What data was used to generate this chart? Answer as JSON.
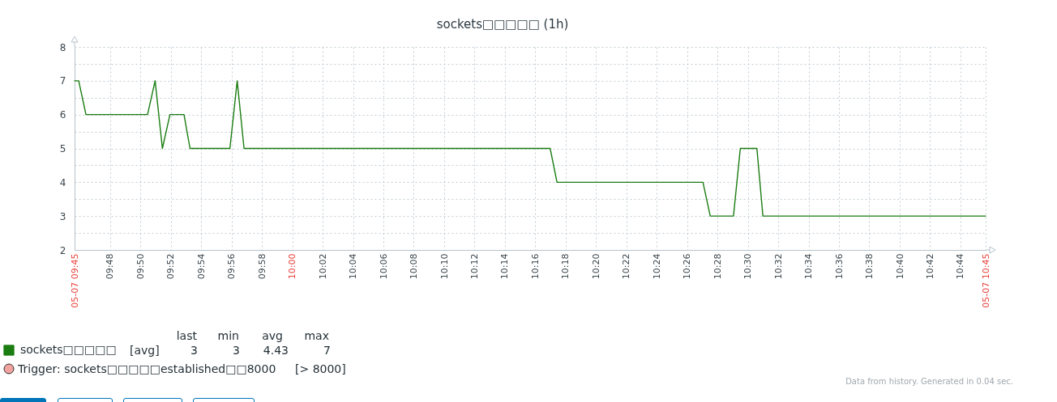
{
  "chart_data": {
    "type": "line",
    "title": "sockets□□□□□ (1h)",
    "x": [
      9.761,
      9.7655,
      9.7735,
      9.8411,
      9.8494,
      9.8574,
      9.8657,
      9.8811,
      9.8877,
      9.9315,
      9.9395,
      9.947,
      10.283,
      10.2905,
      10.4507,
      10.4587,
      10.4842,
      10.4917,
      10.5099,
      10.5165,
      10.761
    ],
    "series": [
      {
        "name": "sockets□□□□□",
        "color": "#1a7c11",
        "values": [
          7,
          7,
          6,
          6,
          7,
          5,
          6,
          6,
          5,
          5,
          7,
          5,
          5,
          4,
          4,
          3,
          3,
          5,
          5,
          3,
          3
        ]
      }
    ],
    "xlim": [
      9.761,
      10.761
    ],
    "xticks": [
      {
        "value": 9.761,
        "label": "05-07 09:45"
      },
      {
        "value": 9.8,
        "label": "09:48"
      },
      {
        "value": 9.8333,
        "label": "09:50"
      },
      {
        "value": 9.8667,
        "label": "09:52"
      },
      {
        "value": 9.9,
        "label": "09:54"
      },
      {
        "value": 9.9333,
        "label": "09:56"
      },
      {
        "value": 9.9667,
        "label": "09:58"
      },
      {
        "value": 10,
        "label": "10:00"
      },
      {
        "value": 10.0333,
        "label": "10:02"
      },
      {
        "value": 10.0667,
        "label": "10:04"
      },
      {
        "value": 10.1,
        "label": "10:06"
      },
      {
        "value": 10.1333,
        "label": "10:08"
      },
      {
        "value": 10.1667,
        "label": "10:10"
      },
      {
        "value": 10.2,
        "label": "10:12"
      },
      {
        "value": 10.2333,
        "label": "10:14"
      },
      {
        "value": 10.2667,
        "label": "10:16"
      },
      {
        "value": 10.3,
        "label": "10:18"
      },
      {
        "value": 10.3333,
        "label": "10:20"
      },
      {
        "value": 10.3667,
        "label": "10:22"
      },
      {
        "value": 10.4,
        "label": "10:24"
      },
      {
        "value": 10.4333,
        "label": "10:26"
      },
      {
        "value": 10.4667,
        "label": "10:28"
      },
      {
        "value": 10.5,
        "label": "10:30"
      },
      {
        "value": 10.5333,
        "label": "10:32"
      },
      {
        "value": 10.5667,
        "label": "10:34"
      },
      {
        "value": 10.6,
        "label": "10:36"
      },
      {
        "value": 10.6333,
        "label": "10:38"
      },
      {
        "value": 10.6667,
        "label": "10:40"
      },
      {
        "value": 10.7,
        "label": "10:42"
      },
      {
        "value": 10.7333,
        "label": "10:44"
      },
      {
        "value": 10.761,
        "label": "05-07 10:45"
      }
    ],
    "ylim": [
      2,
      8
    ],
    "yticks": [
      2,
      {
        "value": 2.5,
        "label": null
      },
      3,
      {
        "value": 3.5,
        "label": null
      },
      4,
      {
        "value": 4.5,
        "label": null
      },
      5,
      {
        "value": 5.5,
        "label": null
      },
      6,
      {
        "value": 6.5,
        "label": null
      },
      7,
      {
        "value": 7.5,
        "label": null
      },
      8
    ],
    "grid": true,
    "legend": "bottom left",
    "annotations": [
      "last",
      "min",
      "avg",
      "max",
      "[avg]",
      "3",
      "3",
      "4.43",
      "7",
      "Trigger: sockets□□□□□established□□8000",
      "[> 8000]",
      "Data from history. Generated in 0.04 sec."
    ]
  }
}
